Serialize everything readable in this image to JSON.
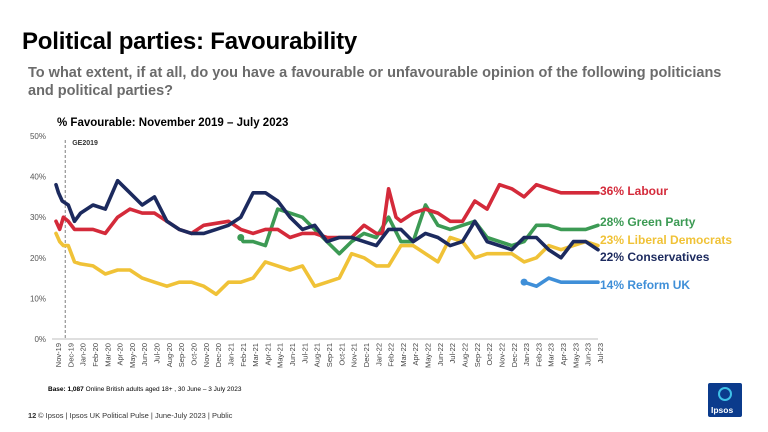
{
  "header": {
    "title": "Political parties: Favourability",
    "subtitle": "To what extent, if at all, do you have a favourable or unfavourable opinion of the following politicians and political parties?"
  },
  "footer": {
    "base_bold": "Base: 1,087",
    "base_rest": " Online British adults aged 18+ , 30 June – 3 July 2023",
    "page": "12",
    "text": "© Ipsos | Ipsos UK Political Pulse | June-July 2023 | Public",
    "logo": "Ipsos"
  },
  "chart_data": {
    "type": "line",
    "title": "% Favourable: November 2019 – July 2023",
    "ylim": [
      0,
      50
    ],
    "y_ticks": [
      "0%",
      "10%",
      "20%",
      "30%",
      "40%",
      "50%"
    ],
    "grid": false,
    "annotation": "GE2019",
    "x_labels": [
      "Nov-19",
      "Dec-19",
      "Jan-20",
      "Feb-20",
      "Mar-20",
      "Apr-20",
      "May-20",
      "Jun-20",
      "Jul-20",
      "Aug-20",
      "Sep-20",
      "Oct-20",
      "Nov-20",
      "Dec-20",
      "Jan-21",
      "Feb-21",
      "Mar-21",
      "Apr-21",
      "May-21",
      "Jun-21",
      "Jul-21",
      "Aug-21",
      "Sep-21",
      "Oct-21",
      "Nov-21",
      "Dec-21",
      "Jan-22",
      "Feb-22",
      "Mar-22",
      "Apr-22",
      "May-22",
      "Jun-22",
      "Jul-22",
      "Aug-22",
      "Sep-22",
      "Oct-22",
      "Nov-22",
      "Dec-22",
      "Jan-23",
      "Feb-23",
      "Mar-23",
      "Apr-23",
      "May-23",
      "Jun-23",
      "Jul-23"
    ],
    "series": [
      {
        "name": "Labour",
        "label": "36% Labour",
        "color": "#d42a3a",
        "points": [
          [
            0,
            29
          ],
          [
            0.3,
            27
          ],
          [
            0.6,
            30
          ],
          [
            1,
            29
          ],
          [
            1.5,
            27
          ],
          [
            2,
            27
          ],
          [
            3,
            27
          ],
          [
            4,
            26
          ],
          [
            5,
            30
          ],
          [
            6,
            32
          ],
          [
            7,
            31
          ],
          [
            8,
            31
          ],
          [
            9,
            29
          ],
          [
            10,
            27
          ],
          [
            11,
            26
          ],
          [
            12,
            28
          ],
          [
            13,
            28.5
          ],
          [
            14,
            29
          ],
          [
            15,
            27
          ],
          [
            16,
            26
          ],
          [
            17,
            27
          ],
          [
            18,
            27
          ],
          [
            19,
            25
          ],
          [
            20,
            26
          ],
          [
            21,
            26
          ],
          [
            22,
            25
          ],
          [
            23,
            25
          ],
          [
            24,
            25
          ],
          [
            25,
            28
          ],
          [
            26,
            26
          ],
          [
            26.5,
            26
          ],
          [
            27,
            37
          ],
          [
            27.6,
            30
          ],
          [
            28,
            29
          ],
          [
            29,
            31
          ],
          [
            30,
            32
          ],
          [
            31,
            31
          ],
          [
            32,
            29
          ],
          [
            33,
            29
          ],
          [
            34,
            34
          ],
          [
            35,
            32
          ],
          [
            36,
            38
          ],
          [
            37,
            37
          ],
          [
            38,
            35
          ],
          [
            39,
            38
          ],
          [
            40,
            37
          ],
          [
            41,
            36
          ],
          [
            42,
            36
          ],
          [
            43,
            36
          ],
          [
            44,
            36
          ]
        ]
      },
      {
        "name": "Green Party",
        "label": "28% Green Party",
        "color": "#3c9a54",
        "points": [
          [
            15,
            25
          ],
          [
            15.2,
            24
          ],
          [
            16,
            24
          ],
          [
            17,
            23
          ],
          [
            18,
            32
          ],
          [
            19,
            31
          ],
          [
            20,
            30
          ],
          [
            21,
            27
          ],
          [
            22,
            24
          ],
          [
            23,
            21
          ],
          [
            24,
            24
          ],
          [
            25,
            26
          ],
          [
            26,
            25
          ],
          [
            27,
            30
          ],
          [
            28,
            24
          ],
          [
            29,
            24
          ],
          [
            30,
            33
          ],
          [
            31,
            28
          ],
          [
            32,
            27
          ],
          [
            33,
            28
          ],
          [
            34,
            29
          ],
          [
            35,
            25
          ],
          [
            36,
            24
          ],
          [
            37,
            23
          ],
          [
            38,
            24
          ],
          [
            39,
            28
          ],
          [
            40,
            28
          ],
          [
            41,
            27
          ],
          [
            42,
            27
          ],
          [
            43,
            27
          ],
          [
            44,
            28
          ]
        ]
      },
      {
        "name": "Liberal Democrats",
        "label": "23% Liberal Democrats",
        "color": "#f0c237",
        "points": [
          [
            0,
            26
          ],
          [
            0.3,
            24
          ],
          [
            0.6,
            23
          ],
          [
            1,
            23
          ],
          [
            1.5,
            19
          ],
          [
            2,
            18.5
          ],
          [
            3,
            18
          ],
          [
            4,
            16
          ],
          [
            5,
            17
          ],
          [
            6,
            17
          ],
          [
            7,
            15
          ],
          [
            8,
            14
          ],
          [
            9,
            13
          ],
          [
            10,
            14
          ],
          [
            11,
            14
          ],
          [
            12,
            13
          ],
          [
            13,
            11
          ],
          [
            14,
            14
          ],
          [
            15,
            14
          ],
          [
            16,
            15
          ],
          [
            17,
            19
          ],
          [
            18,
            18
          ],
          [
            19,
            17
          ],
          [
            20,
            18
          ],
          [
            21,
            13
          ],
          [
            22,
            14
          ],
          [
            23,
            15
          ],
          [
            24,
            21
          ],
          [
            25,
            20
          ],
          [
            26,
            18
          ],
          [
            27,
            18
          ],
          [
            28,
            23
          ],
          [
            29,
            23
          ],
          [
            30,
            21
          ],
          [
            31,
            19
          ],
          [
            32,
            25
          ],
          [
            33,
            24
          ],
          [
            34,
            20
          ],
          [
            35,
            21
          ],
          [
            36,
            21
          ],
          [
            37,
            21
          ],
          [
            38,
            19
          ],
          [
            39,
            20
          ],
          [
            40,
            23
          ],
          [
            41,
            22
          ],
          [
            42,
            23
          ],
          [
            43,
            24
          ],
          [
            44,
            23
          ]
        ]
      },
      {
        "name": "Conservatives",
        "label": "22% Conservatives",
        "color": "#1c2a5e",
        "points": [
          [
            0,
            38
          ],
          [
            0.2,
            36
          ],
          [
            0.5,
            34
          ],
          [
            1,
            33
          ],
          [
            1.5,
            29
          ],
          [
            2,
            31
          ],
          [
            3,
            33
          ],
          [
            4,
            32
          ],
          [
            5,
            39
          ],
          [
            6,
            36
          ],
          [
            7,
            33
          ],
          [
            8,
            35
          ],
          [
            9,
            29
          ],
          [
            10,
            27
          ],
          [
            11,
            26
          ],
          [
            12,
            26
          ],
          [
            13,
            27
          ],
          [
            14,
            28
          ],
          [
            15,
            30
          ],
          [
            16,
            36
          ],
          [
            17,
            36
          ],
          [
            18,
            34
          ],
          [
            19,
            30
          ],
          [
            20,
            27
          ],
          [
            21,
            28
          ],
          [
            22,
            24
          ],
          [
            23,
            25
          ],
          [
            24,
            25
          ],
          [
            25,
            24
          ],
          [
            26,
            23
          ],
          [
            27,
            27
          ],
          [
            28,
            27
          ],
          [
            29,
            24
          ],
          [
            30,
            26
          ],
          [
            31,
            25
          ],
          [
            32,
            23
          ],
          [
            33,
            24
          ],
          [
            34,
            29
          ],
          [
            35,
            24
          ],
          [
            36,
            23
          ],
          [
            37,
            22
          ],
          [
            38,
            25
          ],
          [
            39,
            25
          ],
          [
            40,
            22
          ],
          [
            41,
            20
          ],
          [
            42,
            24
          ],
          [
            43,
            24
          ],
          [
            44,
            22
          ]
        ]
      },
      {
        "name": "Reform UK",
        "label": "14% Reform UK",
        "color": "#3f8fd8",
        "points": [
          [
            38,
            14
          ],
          [
            39,
            13
          ],
          [
            40,
            15
          ],
          [
            41,
            14
          ],
          [
            42,
            14
          ],
          [
            43,
            14
          ],
          [
            44,
            14
          ]
        ]
      }
    ]
  }
}
